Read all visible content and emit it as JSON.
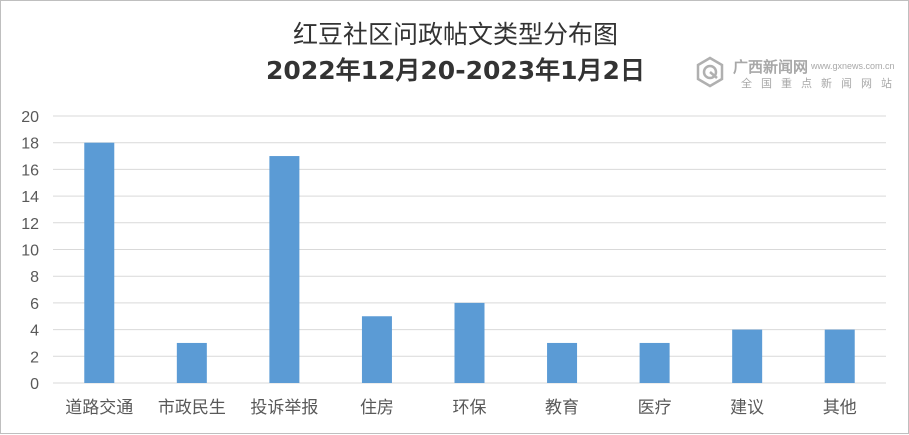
{
  "chart_data": {
    "type": "bar",
    "title": "红豆社区问政帖文类型分布图",
    "subtitle": "2022年12月20-2023年1月2日",
    "categories": [
      "道路交通",
      "市政民生",
      "投诉举报",
      "住房",
      "环保",
      "教育",
      "医疗",
      "建议",
      "其他"
    ],
    "values": [
      18,
      3,
      17,
      5,
      6,
      3,
      3,
      4,
      4
    ],
    "ylim": [
      0,
      20
    ],
    "yticks": [
      "0",
      "2",
      "4",
      "6",
      "8",
      "10",
      "12",
      "14",
      "16",
      "18",
      "20"
    ],
    "grid": true,
    "legend": "none",
    "bar_color": "#5b9bd5",
    "grid_color": "#d9d9d9"
  },
  "watermark": {
    "name": "广西新闻网",
    "url": "www.gxnews.com.cn",
    "sub": "全国重点新闻网站"
  }
}
